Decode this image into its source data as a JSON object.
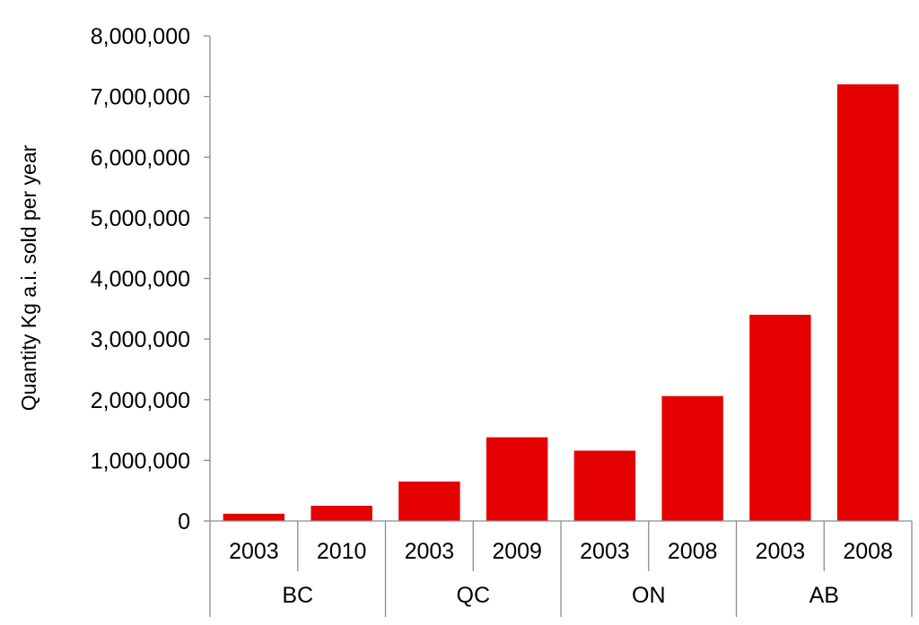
{
  "chart_data": {
    "type": "bar",
    "title": "",
    "ylabel": "Quantity Kg a.i. sold per year",
    "xlabel": "",
    "ylim": [
      0,
      8000000
    ],
    "y_ticks": [
      "0",
      "1,000,000",
      "2,000,000",
      "3,000,000",
      "4,000,000",
      "5,000,000",
      "6,000,000",
      "7,000,000",
      "8,000,000"
    ],
    "y_tick_values": [
      0,
      1000000,
      2000000,
      3000000,
      4000000,
      5000000,
      6000000,
      7000000,
      8000000
    ],
    "groups": [
      {
        "name": "BC",
        "categories": [
          "2003",
          "2010"
        ],
        "values": [
          120000,
          250000
        ]
      },
      {
        "name": "QC",
        "categories": [
          "2003",
          "2009"
        ],
        "values": [
          650000,
          1380000
        ]
      },
      {
        "name": "ON",
        "categories": [
          "2003",
          "2008"
        ],
        "values": [
          1160000,
          2060000
        ]
      },
      {
        "name": "AB",
        "categories": [
          "2003",
          "2008"
        ],
        "values": [
          3400000,
          7200000
        ]
      }
    ],
    "bar_color": "#e50000",
    "grid": false,
    "legend": "none"
  }
}
